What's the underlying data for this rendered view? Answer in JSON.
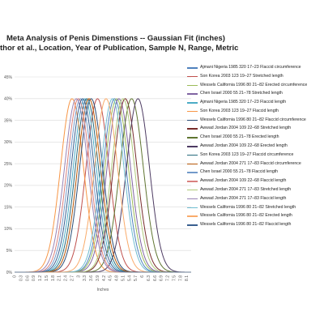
{
  "chart_data": {
    "type": "line",
    "title_line1": "Meta Analysis of Penis Dimenstions -- Gaussian Fit (inches)",
    "title_line2": "thor et al., Location, Year of Publication, Sample N, Range, Metric",
    "xlabel": "Inches",
    "ylabel": "",
    "ylim": [
      0,
      45
    ],
    "xlim": [
      0,
      8.3
    ],
    "y_ticks": [
      "0%",
      "5%",
      "10%",
      "15%",
      "20%",
      "25%",
      "30%",
      "35%",
      "40%",
      "45%"
    ],
    "x_ticks": [
      "0",
      "0.3",
      "0.6",
      "0.9",
      "1.2",
      "1.5",
      "1.8",
      "2.1",
      "2.4",
      "2.7",
      "3",
      "3.3",
      "3.6",
      "3.9",
      "4.2",
      "4.5",
      "4.8",
      "5.1",
      "5.4",
      "5.7",
      "6",
      "6.3",
      "6.6",
      "6.9",
      "7.2",
      "7.5",
      "7.8",
      "8.1"
    ],
    "grid": true,
    "legend_position": "right",
    "series": [
      {
        "name": "Ajmani Nigeria 1985 320 17–23 Flaccid circumference",
        "color": "#4f81bd",
        "mean": 4.7,
        "sd": 0.98
      },
      {
        "name": "Son Korea 2003 123 19–27 Stretched length",
        "color": "#c0504d",
        "mean": 3.9,
        "sd": 0.98
      },
      {
        "name": "Wessels California 1996 80 21–82 Erected circumference",
        "color": "#9bbb59",
        "mean": 4.8,
        "sd": 1.0
      },
      {
        "name": "Chen Israel 2000 55 21–78 Stretched length",
        "color": "#8064a2",
        "mean": 4.9,
        "sd": 1.0
      },
      {
        "name": "Ajmani Nigeria 1985 320 17–23 Flaccid length",
        "color": "#4bacc6",
        "mean": 3.3,
        "sd": 0.98
      },
      {
        "name": "Son Korea 2003 123 19–27 Flaccid length",
        "color": "#f79646",
        "mean": 2.7,
        "sd": 0.98
      },
      {
        "name": "Wessels California 1996 80 21–82 Flaccid circumference",
        "color": "#2c4d75",
        "mean": 3.6,
        "sd": 0.98
      },
      {
        "name": "Awwad Jordan 2004 109 22–68 Stretched length",
        "color": "#772c2a",
        "mean": 5.2,
        "sd": 1.0
      },
      {
        "name": "Chen Israel 2000 55 21–78 Erected length",
        "color": "#5f7530",
        "mean": 5.5,
        "sd": 1.0
      },
      {
        "name": "Awwad Jordan 2004 109 22–68 Erected length",
        "color": "#4d3b62",
        "mean": 5.8,
        "sd": 0.98
      },
      {
        "name": "Son Korea 2003 123 19–27 Flaccid circumference",
        "color": "#276a7c",
        "mean": 3.4,
        "sd": 0.98
      },
      {
        "name": "Awwad Jordan 2004 271 17–83 Flaccid circumference",
        "color": "#b65708",
        "mean": 3.5,
        "sd": 0.98
      },
      {
        "name": "Chen Israel 2000 55 21–78 Flaccid length",
        "color": "#729aca",
        "mean": 3.1,
        "sd": 0.98
      },
      {
        "name": "Awwad Jordan 2004 109 22–68 Flaccid length",
        "color": "#d9807e",
        "mean": 3.0,
        "sd": 0.98
      },
      {
        "name": "Awwad Jordan 2004 271 17–83 Stretched length",
        "color": "#afc97a",
        "mean": 5.1,
        "sd": 0.98
      },
      {
        "name": "Awwad Jordan 2004 271 17–83 Flaccid length",
        "color": "#9983b5",
        "mean": 2.9,
        "sd": 1.0
      },
      {
        "name": "Wessels California 1996 80 21–82 Stretched length",
        "color": "#6fbdd1",
        "mean": 4.6,
        "sd": 0.98
      },
      {
        "name": "Wessels California 1996 80 21–82 Erected length",
        "color": "#f9ab6b",
        "mean": 4.3,
        "sd": 0.98
      },
      {
        "name": "Wessels California 1996 80 21–82 Flaccid length",
        "color": "#3a5f8f",
        "mean": 3.2,
        "sd": 0.98
      }
    ]
  }
}
